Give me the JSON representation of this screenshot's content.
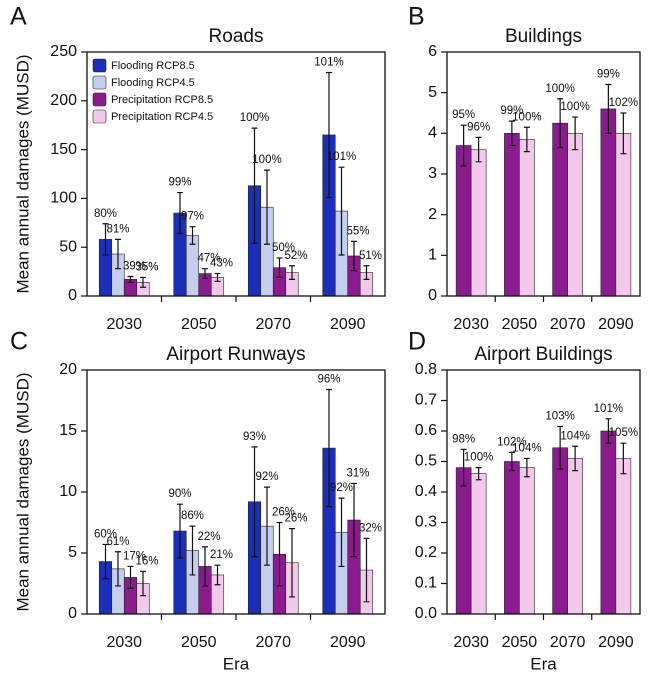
{
  "chart_data": [
    {
      "type": "bar",
      "panel": "A",
      "title": "Roads",
      "ylabel": "Mean annual damages (MUSD)",
      "categories": [
        "2030",
        "2050",
        "2070",
        "2090"
      ],
      "ylim": [
        0,
        250
      ],
      "yticks": [
        0,
        50,
        100,
        150,
        200,
        250
      ],
      "legend": "upper left",
      "series": [
        {
          "name": "Flooding RCP8.5",
          "color": "#1b2fb8",
          "values": [
            58,
            85,
            113,
            165
          ],
          "errors": [
            16,
            21,
            59,
            64
          ],
          "annotations": [
            "80%",
            "99%",
            "100%",
            "101%"
          ]
        },
        {
          "name": "Flooding RCP4.5",
          "color": "#c6cef0",
          "values": [
            43,
            62,
            91,
            87
          ],
          "errors": [
            15,
            9,
            38,
            45
          ],
          "annotations": [
            "81%",
            "97%",
            "100%",
            "101%"
          ]
        },
        {
          "name": "Precipitation RCP8.5",
          "color": "#8b1c8e",
          "values": [
            17,
            23,
            29,
            41
          ],
          "errors": [
            3,
            5,
            10,
            15
          ],
          "annotations": [
            "39%",
            "47%",
            "50%",
            "55%"
          ]
        },
        {
          "name": "Precipitation RCP4.5",
          "color": "#f2c9ea",
          "values": [
            14,
            19,
            24,
            24
          ],
          "errors": [
            5,
            4,
            7,
            7
          ],
          "annotations": [
            "35%",
            "43%",
            "52%",
            "51%"
          ]
        }
      ]
    },
    {
      "type": "bar",
      "panel": "B",
      "title": "Buildings",
      "categories": [
        "2030",
        "2050",
        "2070",
        "2090"
      ],
      "ylim": [
        0,
        6
      ],
      "yticks": [
        0,
        1,
        2,
        3,
        4,
        5,
        6
      ],
      "series": [
        {
          "color": "#8b1c8e",
          "values": [
            3.7,
            4.0,
            4.25,
            4.6
          ],
          "errors": [
            0.5,
            0.3,
            0.6,
            0.6
          ],
          "annotations": [
            "95%",
            "99%",
            "100%",
            "99%"
          ]
        },
        {
          "color": "#f2c9ea",
          "values": [
            3.6,
            3.85,
            4.0,
            4.0
          ],
          "errors": [
            0.3,
            0.3,
            0.4,
            0.5
          ],
          "annotations": [
            "96%",
            "100%",
            "100%",
            "102%"
          ]
        }
      ]
    },
    {
      "type": "bar",
      "panel": "C",
      "title": "Airport Runways",
      "ylabel": "Mean annual damages (MUSD)",
      "xlabel": "Era",
      "categories": [
        "2030",
        "2050",
        "2070",
        "2090"
      ],
      "ylim": [
        0,
        20
      ],
      "yticks": [
        0,
        5,
        10,
        15,
        20
      ],
      "series": [
        {
          "color": "#1b2fb8",
          "values": [
            4.3,
            6.8,
            9.2,
            13.6
          ],
          "errors": [
            1.4,
            2.2,
            4.5,
            4.8
          ],
          "annotations": [
            "60%",
            "90%",
            "93%",
            "96%"
          ]
        },
        {
          "color": "#c6cef0",
          "values": [
            3.7,
            5.2,
            7.2,
            6.7
          ],
          "errors": [
            1.4,
            2.0,
            3.2,
            2.8
          ],
          "annotations": [
            "61%",
            "86%",
            "92%",
            "92%"
          ]
        },
        {
          "color": "#8b1c8e",
          "values": [
            3.0,
            3.9,
            4.9,
            7.7
          ],
          "errors": [
            0.9,
            1.6,
            2.6,
            3.0
          ],
          "annotations": [
            "17%",
            "22%",
            "26%",
            "31%"
          ]
        },
        {
          "color": "#f2c9ea",
          "values": [
            2.5,
            3.2,
            4.2,
            3.6
          ],
          "errors": [
            1.0,
            0.8,
            2.8,
            2.6
          ],
          "annotations": [
            "16%",
            "21%",
            "26%",
            "32%"
          ]
        }
      ]
    },
    {
      "type": "bar",
      "panel": "D",
      "title": "Airport Buildings",
      "xlabel": "Era",
      "categories": [
        "2030",
        "2050",
        "2070",
        "2090"
      ],
      "ylim": [
        0,
        0.8
      ],
      "yticks": [
        {
          "value": 0,
          "label": "0.0"
        },
        0.1,
        0.2,
        0.3,
        0.4,
        0.5,
        0.6,
        0.7,
        0.8
      ],
      "series": [
        {
          "color": "#8b1c8e",
          "values": [
            0.48,
            0.5,
            0.545,
            0.6
          ],
          "errors": [
            0.06,
            0.03,
            0.07,
            0.04
          ],
          "annotations": [
            "98%",
            "102%",
            "103%",
            "101%"
          ]
        },
        {
          "color": "#f2c9ea",
          "values": [
            0.46,
            0.48,
            0.51,
            0.51
          ],
          "errors": [
            0.02,
            0.03,
            0.04,
            0.05
          ],
          "annotations": [
            "100%",
            "104%",
            "104%",
            "105%"
          ]
        }
      ]
    }
  ]
}
